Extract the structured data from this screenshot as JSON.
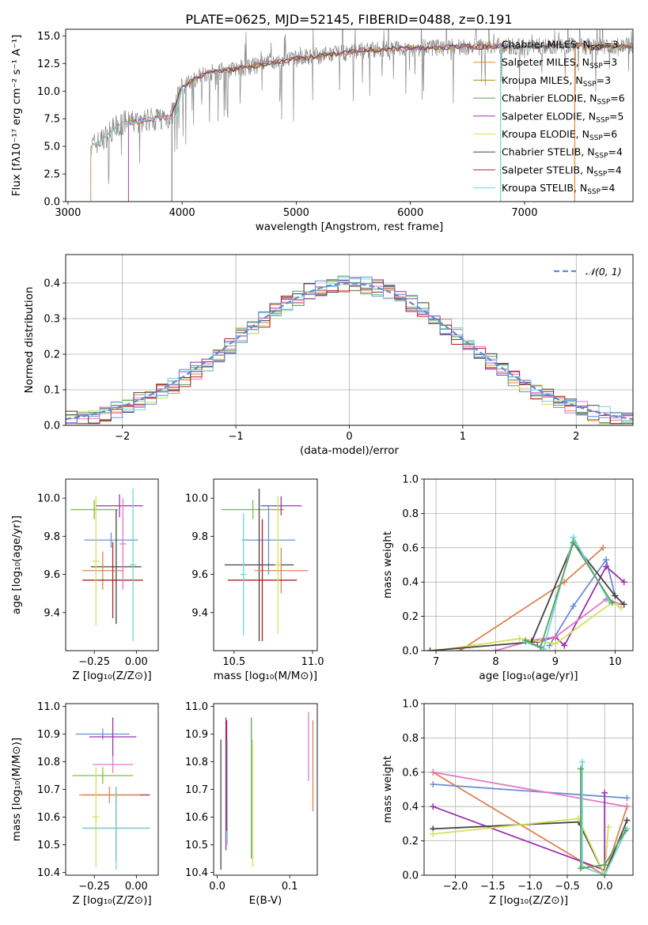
{
  "figure": {
    "title": "PLATE=0625, MJD=52145, FIBERID=0488, z=0.191",
    "colors": [
      "#4c72b0",
      "#dd8452",
      "#e8892c",
      "#cc6f2f",
      "#6a8fd6",
      "#8e3fb2",
      "#d4e157",
      "#555555",
      "#b22222",
      "#70d6d6",
      "#e377c2",
      "#7fbf3f",
      "#999999"
    ]
  },
  "legend": {
    "entries": [
      {
        "name": "Chabrier MILES, N",
        "sub": "SSP",
        "tail": "=3",
        "color": "#dd8452"
      },
      {
        "name": "Salpeter MILES, N",
        "sub": "SSP",
        "tail": "=3",
        "color": "#e8892c"
      },
      {
        "name": "Kroupa MILES, N",
        "sub": "SSP",
        "tail": "=3",
        "color": "#b8860b"
      },
      {
        "name": "Chabrier ELODIE, N",
        "sub": "SSP",
        "tail": "=6",
        "color": "#5f9f5f"
      },
      {
        "name": "Salpeter ELODIE, N",
        "sub": "SSP",
        "tail": "=5",
        "color": "#9b30b0"
      },
      {
        "name": "Kroupa ELODIE, N",
        "sub": "SSP",
        "tail": "=6",
        "color": "#d4e157"
      },
      {
        "name": "Chabrier STELIB, N",
        "sub": "SSP",
        "tail": "=4",
        "color": "#444444"
      },
      {
        "name": "Salpeter STELIB, N",
        "sub": "SSP",
        "tail": "=4",
        "color": "#b22222"
      },
      {
        "name": "Kroupa STELIB, N",
        "sub": "SSP",
        "tail": "=4",
        "color": "#70d6d6"
      }
    ],
    "dist_legend": "𝒩(0, 1)"
  },
  "chart_data": [
    {
      "type": "line",
      "id": "spectrum",
      "xlabel": "wavelength [Angstrom, rest frame]",
      "ylabel": "Flux [fλ10⁻¹⁷ erg cm⁻² s⁻¹ A⁻¹]",
      "xlim": [
        2980,
        7950
      ],
      "ylim": [
        0,
        15.6
      ],
      "xticks": [
        3000,
        4000,
        5000,
        6000,
        7000
      ],
      "yticks": [
        0.0,
        2.5,
        5.0,
        7.5,
        10.0,
        12.5,
        15.0
      ],
      "data_x": [
        3200,
        3300,
        3400,
        3500,
        3600,
        3700,
        3800,
        3900,
        4000,
        4200,
        4400,
        4600,
        4800,
        5000,
        5200,
        5400,
        5600,
        5800,
        6000,
        6200,
        6400,
        6600,
        6800,
        7000,
        7200,
        7400,
        7600,
        7800,
        7950
      ],
      "data_y": [
        5.0,
        5.6,
        6.6,
        7.2,
        7.2,
        7.4,
        7.6,
        7.6,
        10.4,
        11.6,
        11.9,
        12.2,
        12.6,
        12.9,
        13.2,
        13.4,
        13.7,
        13.8,
        13.9,
        13.9,
        14.0,
        14.0,
        14.1,
        14.0,
        14.1,
        14.2,
        14.0,
        14.1,
        14.1
      ],
      "model_starts": [
        3200,
        3530,
        3530,
        3910,
        6790,
        7440
      ]
    },
    {
      "type": "line",
      "id": "residual-histogram",
      "xlabel": "(data-model)/error",
      "ylabel": "Normed distribution",
      "xlim": [
        -2.5,
        2.5
      ],
      "ylim": [
        0,
        0.48
      ],
      "xticks": [
        -2,
        -1,
        0,
        1,
        2
      ],
      "yticks": [
        0.0,
        0.1,
        0.2,
        0.3,
        0.4
      ],
      "bin_width": 0.1
    },
    {
      "type": "scatter",
      "id": "age-vs-z",
      "xlabel": "Z [log₁₀(Z/Z⊙)]",
      "ylabel": "age  [log₁₀(age/yr)]",
      "xlim": [
        -0.42,
        0.13
      ],
      "ylim": [
        9.2,
        10.1
      ],
      "xticks": [
        -0.25,
        0.0
      ],
      "yticks": [
        9.4,
        9.6,
        9.8,
        10.0
      ],
      "points": [
        {
          "x": -0.25,
          "y": 9.94,
          "xerr": 0.14,
          "yerr": 0.05,
          "color": "#7fbf3f"
        },
        {
          "x": -0.1,
          "y": 9.96,
          "xerr": 0.14,
          "yerr": 0.06,
          "color": "#9b30b0"
        },
        {
          "x": -0.15,
          "y": 9.78,
          "xerr": 0.16,
          "yerr": 0.04,
          "color": "#6a8fd6"
        },
        {
          "x": -0.12,
          "y": 9.64,
          "xerr": 0.15,
          "yerr": 0.3,
          "color": "#444444"
        },
        {
          "x": -0.2,
          "y": 9.62,
          "xerr": 0.12,
          "yerr": 0.1,
          "color": "#dd8452"
        },
        {
          "x": -0.14,
          "y": 9.57,
          "xerr": 0.18,
          "yerr": 0.2,
          "color": "#b22222"
        },
        {
          "x": -0.24,
          "y": 9.67,
          "xerr": 0.02,
          "yerr": 0.34,
          "color": "#d4e157"
        },
        {
          "x": -0.02,
          "y": 9.65,
          "xerr": 0.02,
          "yerr": 0.4,
          "color": "#70d6d6"
        },
        {
          "x": -0.08,
          "y": 9.76,
          "xerr": 0.02,
          "yerr": 0.24,
          "color": "#e377c2"
        }
      ]
    },
    {
      "type": "scatter",
      "id": "age-vs-mass",
      "xlabel": "mass [log₁₀(M/M⊙)]",
      "ylabel": "",
      "xlim": [
        10.37,
        11.03
      ],
      "ylim": [
        9.2,
        10.1
      ],
      "xticks": [
        10.5,
        11.0
      ],
      "yticks": [
        9.4,
        9.6,
        9.8,
        10.0
      ],
      "points": [
        {
          "x": 10.62,
          "y": 9.94,
          "xerr": 0.2,
          "yerr": 0.05,
          "color": "#7fbf3f"
        },
        {
          "x": 10.8,
          "y": 9.96,
          "xerr": 0.13,
          "yerr": 0.05,
          "color": "#9b30b0"
        },
        {
          "x": 10.72,
          "y": 9.78,
          "xerr": 0.17,
          "yerr": 0.18,
          "color": "#6a8fd6"
        },
        {
          "x": 10.66,
          "y": 9.65,
          "xerr": 0.22,
          "yerr": 0.4,
          "color": "#444444"
        },
        {
          "x": 10.8,
          "y": 9.62,
          "xerr": 0.17,
          "yerr": 0.12,
          "color": "#dd8452"
        },
        {
          "x": 10.68,
          "y": 9.57,
          "xerr": 0.22,
          "yerr": 0.32,
          "color": "#b22222"
        },
        {
          "x": 10.78,
          "y": 9.65,
          "xerr": 0.02,
          "yerr": 0.36,
          "color": "#d4e157"
        },
        {
          "x": 10.56,
          "y": 9.6,
          "xerr": 0.02,
          "yerr": 0.32,
          "color": "#70d6d6"
        }
      ]
    },
    {
      "type": "line",
      "id": "mass-weight-vs-age",
      "xlabel": "age  [log₁₀(age/yr)]",
      "ylabel": "mass weight",
      "xlim": [
        6.8,
        10.3
      ],
      "ylim": [
        0.0,
        1.0
      ],
      "xticks": [
        7,
        8,
        9,
        10
      ],
      "yticks": [
        0.0,
        0.2,
        0.4,
        0.6,
        0.8,
        1.0
      ],
      "series": [
        {
          "color": "#dd8452",
          "points": [
            [
              7.4,
              0.0
            ],
            [
              9.15,
              0.4
            ],
            [
              9.8,
              0.6
            ]
          ]
        },
        {
          "color": "#6a8fd6",
          "points": [
            [
              8.9,
              0.03
            ],
            [
              9.3,
              0.26
            ],
            [
              9.85,
              0.53
            ],
            [
              10.0,
              0.32
            ]
          ]
        },
        {
          "color": "#9b30b0",
          "points": [
            [
              8.7,
              0.05
            ],
            [
              9.0,
              0.08
            ],
            [
              9.15,
              0.03
            ],
            [
              9.85,
              0.49
            ],
            [
              10.15,
              0.4
            ]
          ]
        },
        {
          "color": "#e377c2",
          "points": [
            [
              8.0,
              0.0
            ],
            [
              8.6,
              0.06
            ],
            [
              9.0,
              0.08
            ],
            [
              9.85,
              0.3
            ],
            [
              10.1,
              0.27
            ]
          ]
        },
        {
          "color": "#d4e157",
          "points": [
            [
              7.0,
              0.0
            ],
            [
              8.4,
              0.07
            ],
            [
              9.0,
              0.04
            ],
            [
              9.95,
              0.28
            ],
            [
              10.1,
              0.25
            ]
          ]
        },
        {
          "color": "#444444",
          "points": [
            [
              6.9,
              0.0
            ],
            [
              8.6,
              0.05
            ],
            [
              9.3,
              0.63
            ],
            [
              10.0,
              0.32
            ],
            [
              10.15,
              0.27
            ]
          ]
        },
        {
          "color": "#70d6d6",
          "points": [
            [
              8.5,
              0.05
            ],
            [
              8.8,
              0.01
            ],
            [
              9.3,
              0.66
            ],
            [
              9.9,
              0.29
            ]
          ]
        },
        {
          "color": "#5f9f5f",
          "points": [
            [
              8.5,
              0.06
            ],
            [
              8.75,
              0.02
            ],
            [
              9.3,
              0.63
            ],
            [
              9.95,
              0.28
            ]
          ]
        }
      ]
    },
    {
      "type": "scatter",
      "id": "mass-vs-z",
      "xlabel": "Z [log₁₀(Z/Z⊙)]",
      "ylabel": "mass [log₁₀(M/M⊙)]",
      "xlim": [
        -0.42,
        0.13
      ],
      "ylim": [
        10.39,
        11.01
      ],
      "xticks": [
        -0.25,
        0.0
      ],
      "yticks": [
        10.4,
        10.5,
        10.6,
        10.7,
        10.8,
        10.9,
        11.0
      ],
      "points": [
        {
          "x": -0.2,
          "y": 10.9,
          "xerr": 0.16,
          "yerr": 0.02,
          "color": "#6a8fd6"
        },
        {
          "x": -0.14,
          "y": 10.89,
          "xerr": 0.14,
          "yerr": 0.07,
          "color": "#9b30b0"
        },
        {
          "x": -0.14,
          "y": 10.79,
          "xerr": 0.12,
          "yerr": 0.03,
          "color": "#e377c2"
        },
        {
          "x": -0.2,
          "y": 10.75,
          "xerr": 0.18,
          "yerr": 0.03,
          "color": "#7fbf3f"
        },
        {
          "x": -0.12,
          "y": 10.68,
          "xerr": 0.2,
          "yerr": 0.03,
          "color": "#b22222"
        },
        {
          "x": -0.16,
          "y": 10.68,
          "xerr": 0.18,
          "yerr": 0.03,
          "color": "#dd8452"
        },
        {
          "x": -0.12,
          "y": 10.56,
          "xerr": 0.2,
          "yerr": 0.12,
          "color": "#444444"
        },
        {
          "x": -0.12,
          "y": 10.56,
          "xerr": 0.2,
          "yerr": 0.15,
          "color": "#70d6d6"
        },
        {
          "x": -0.24,
          "y": 10.6,
          "xerr": 0.02,
          "yerr": 0.18,
          "color": "#d4e157"
        }
      ]
    },
    {
      "type": "scatter",
      "id": "mass-vs-ebv",
      "xlabel": "E(B-V)",
      "ylabel": "",
      "xlim": [
        -0.005,
        0.138
      ],
      "ylim": [
        10.39,
        11.01
      ],
      "xticks": [
        0.0,
        0.1
      ],
      "yticks": [
        10.4,
        10.5,
        10.6,
        10.7,
        10.8,
        10.9,
        11.0
      ],
      "vlines": [
        {
          "x": 0.005,
          "y0": 10.41,
          "y1": 10.88,
          "color": "#444444"
        },
        {
          "x": 0.012,
          "y0": 10.48,
          "y1": 10.96,
          "color": "#9b30b0"
        },
        {
          "x": 0.013,
          "y0": 10.55,
          "y1": 10.95,
          "color": "#b22222"
        },
        {
          "x": 0.014,
          "y0": 10.5,
          "y1": 10.88,
          "color": "#70d6d6"
        },
        {
          "x": 0.047,
          "y0": 10.45,
          "y1": 10.96,
          "color": "#5f9f5f"
        },
        {
          "x": 0.049,
          "y0": 10.42,
          "y1": 10.88,
          "color": "#d4e157"
        },
        {
          "x": 0.126,
          "y0": 10.73,
          "y1": 10.98,
          "color": "#e377c2"
        },
        {
          "x": 0.132,
          "y0": 10.62,
          "y1": 10.95,
          "color": "#dd8452"
        }
      ]
    },
    {
      "type": "line",
      "id": "mass-weight-vs-z",
      "xlabel": "Z [log₁₀(Z/Z⊙)]",
      "ylabel": "mass weight",
      "xlim": [
        -2.42,
        0.38
      ],
      "ylim": [
        0.0,
        1.0
      ],
      "xticks": [
        -2.0,
        -1.5,
        -1.0,
        -0.5,
        0.0
      ],
      "yticks": [
        0.0,
        0.2,
        0.4,
        0.6,
        0.8,
        1.0
      ],
      "series": [
        {
          "color": "#dd8452",
          "points": [
            [
              -2.3,
              0.6
            ],
            [
              0.0,
              0.0
            ],
            [
              0.3,
              0.4
            ]
          ]
        },
        {
          "color": "#6a8fd6",
          "points": [
            [
              -2.3,
              0.53
            ],
            [
              0.3,
              0.45
            ]
          ]
        },
        {
          "color": "#e377c2",
          "points": [
            [
              -2.3,
              0.6
            ],
            [
              0.3,
              0.4
            ]
          ]
        },
        {
          "color": "#9b30b0",
          "points": [
            [
              -2.3,
              0.4
            ],
            [
              0.0,
              0.03
            ],
            [
              0.0,
              0.48
            ]
          ]
        },
        {
          "color": "#444444",
          "points": [
            [
              -2.3,
              0.27
            ],
            [
              -0.35,
              0.31
            ],
            [
              0.0,
              0.0
            ],
            [
              0.3,
              0.32
            ]
          ]
        },
        {
          "color": "#d4e157",
          "points": [
            [
              -2.3,
              0.24
            ],
            [
              -0.35,
              0.33
            ],
            [
              0.0,
              0.0
            ],
            [
              0.05,
              0.28
            ]
          ]
        },
        {
          "color": "#70d6d6",
          "points": [
            [
              -0.3,
              0.66
            ],
            [
              -0.3,
              0.05
            ],
            [
              0.0,
              0.0
            ],
            [
              0.3,
              0.27
            ]
          ]
        },
        {
          "color": "#5f9f5f",
          "points": [
            [
              -0.32,
              0.62
            ],
            [
              -0.32,
              0.04
            ],
            [
              0.0,
              0.06
            ],
            [
              0.28,
              0.26
            ]
          ]
        }
      ]
    }
  ]
}
